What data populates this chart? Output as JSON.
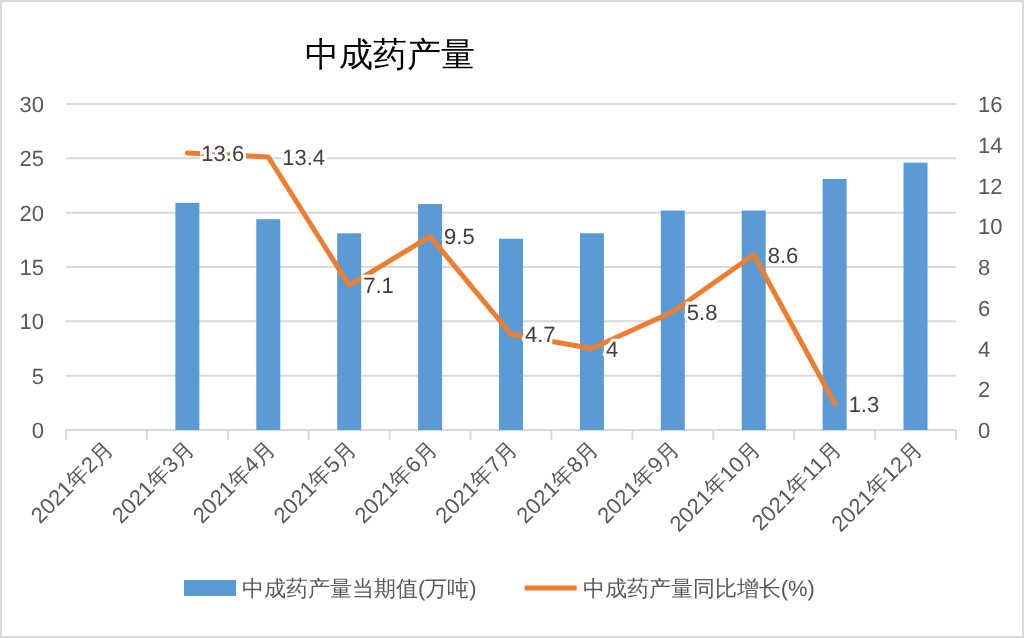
{
  "chart_data": {
    "type": "bar",
    "title": "中成药产量",
    "categories": [
      "2021年2月",
      "2021年3月",
      "2021年4月",
      "2021年5月",
      "2021年6月",
      "2021年7月",
      "2021年8月",
      "2021年9月",
      "2021年10月",
      "2021年11月",
      "2021年12月"
    ],
    "series": [
      {
        "name": "中成药产量当期值(万吨)",
        "color": "#5b9bd5",
        "values": [
          null,
          20.9,
          19.4,
          18.1,
          20.8,
          17.6,
          18.1,
          20.2,
          20.2,
          23.1,
          24.6
        ]
      },
      {
        "name": "中成药产量同比增长(%)",
        "type": "line",
        "axis": "y2",
        "color": "#ed7d31",
        "values": [
          null,
          13.6,
          13.4,
          7.1,
          9.5,
          4.7,
          4,
          5.8,
          8.6,
          1.3,
          null
        ],
        "value_labels": [
          null,
          "13.6",
          "13.4",
          "7.1",
          "9.5",
          "4.7",
          "4",
          "5.8",
          "8.6",
          "1.3",
          null
        ]
      }
    ],
    "ylim": [
      0,
      30
    ],
    "yticks": [
      0,
      5,
      10,
      15,
      20,
      25,
      30
    ],
    "y2lim": [
      0,
      16
    ],
    "y2ticks": [
      0,
      2,
      4,
      6,
      8,
      10,
      12,
      14,
      16
    ],
    "grid": "y",
    "legend": "bottom"
  }
}
